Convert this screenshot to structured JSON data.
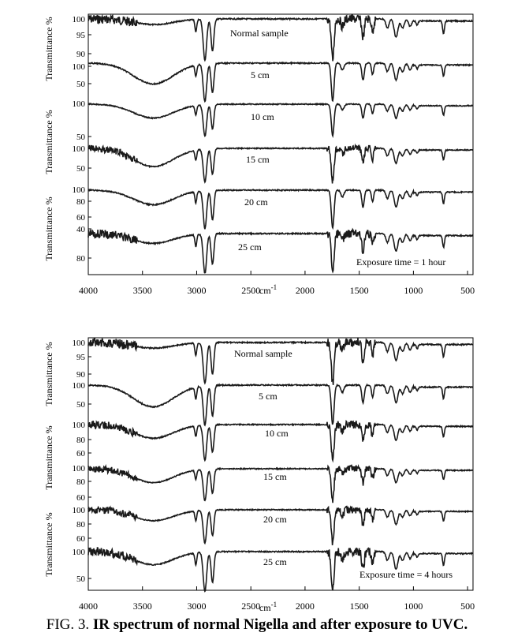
{
  "caption": {
    "prefix": "FIG. 3.",
    "title": "IR spectrum of normal Nigella and after exposure to UVC."
  },
  "chart_data": [
    {
      "type": "line",
      "panel": "top",
      "annotation": "Exposure time = 1 hour",
      "xlabel": "cm-1",
      "x_ticks": [
        4000,
        3500,
        3000,
        2500,
        2000,
        1500,
        1000,
        500
      ],
      "xlim": [
        4000,
        450
      ],
      "x_reversed": true,
      "ylabel_left": [
        "Transmittance %",
        "Transmittance %",
        "Transmittance %"
      ],
      "series": [
        {
          "name": "Normal sample",
          "y_ticks": [
            "100",
            "95",
            "90"
          ]
        },
        {
          "name": "5 cm",
          "y_ticks": [
            "100",
            "50"
          ]
        },
        {
          "name": "10 cm",
          "y_ticks": [
            "100",
            "50"
          ]
        },
        {
          "name": "15 cm",
          "y_ticks": [
            "100",
            "50"
          ]
        },
        {
          "name": "20 cm",
          "y_ticks": [
            "100",
            "80",
            "60",
            "40"
          ]
        },
        {
          "name": "25 cm",
          "y_ticks": [
            "80"
          ]
        }
      ]
    },
    {
      "type": "line",
      "panel": "bottom",
      "annotation": "Exposure time = 4 hours",
      "xlabel": "cm-1",
      "x_ticks": [
        4000,
        3500,
        3000,
        2500,
        2000,
        1500,
        1000,
        500
      ],
      "xlim": [
        4000,
        450
      ],
      "x_reversed": true,
      "ylabel_left": [
        "Transmittance %",
        "Transmittance %",
        "Transmittance %"
      ],
      "series": [
        {
          "name": "Normal sample",
          "y_ticks": [
            "100",
            "95",
            "90"
          ]
        },
        {
          "name": "5 cm",
          "y_ticks": [
            "100",
            "50"
          ]
        },
        {
          "name": "10 cm",
          "y_ticks": [
            "100",
            "80",
            "60"
          ]
        },
        {
          "name": "15 cm",
          "y_ticks": [
            "100",
            "80",
            "60"
          ]
        },
        {
          "name": "20 cm",
          "y_ticks": [
            "100",
            "80",
            "60"
          ]
        },
        {
          "name": "25 cm",
          "y_ticks": [
            "100",
            "50"
          ]
        }
      ]
    }
  ]
}
